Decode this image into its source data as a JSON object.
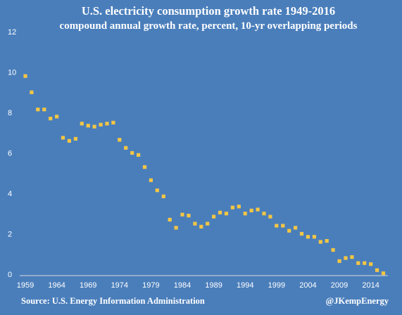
{
  "colors": {
    "background": "#4a7ebb",
    "marker": "#f2c644",
    "axis_line": "#d9d9d9",
    "text": "#ffffff"
  },
  "footer": {
    "source": "Source: U.S. Energy Information Administration",
    "credit": "@JKempEnergy"
  },
  "chart_data": {
    "type": "scatter",
    "title": "U.S. electricity consumption growth rate 1949-2016",
    "subtitle": "compound annual growth rate, percent, 10-yr overlapping periods",
    "xlabel": "",
    "ylabel": "",
    "xlim": [
      1959,
      2016
    ],
    "ylim": [
      0,
      12
    ],
    "x_ticks": [
      1959,
      1964,
      1969,
      1974,
      1979,
      1984,
      1989,
      1994,
      1999,
      2004,
      2009,
      2014
    ],
    "y_ticks": [
      0,
      2,
      4,
      6,
      8,
      10,
      12
    ],
    "grid": false,
    "marker": "square",
    "series": [
      {
        "x": [
          1959,
          1960,
          1961,
          1962,
          1963,
          1964,
          1965,
          1966,
          1967,
          1968,
          1969,
          1970,
          1971,
          1972,
          1973,
          1974,
          1975,
          1976,
          1977,
          1978,
          1979,
          1980,
          1981,
          1982,
          1983,
          1984,
          1985,
          1986,
          1987,
          1988,
          1989,
          1990,
          1991,
          1992,
          1993,
          1994,
          1995,
          1996,
          1997,
          1998,
          1999,
          2000,
          2001,
          2002,
          2003,
          2004,
          2005,
          2006,
          2007,
          2008,
          2009,
          2010,
          2011,
          2012,
          2013,
          2014,
          2015,
          2016
        ],
        "y": [
          9.8,
          9.0,
          8.15,
          8.15,
          7.7,
          7.8,
          6.75,
          6.6,
          6.7,
          7.45,
          7.35,
          7.3,
          7.4,
          7.45,
          7.5,
          6.65,
          6.25,
          6.0,
          5.9,
          5.3,
          4.65,
          4.15,
          3.85,
          2.7,
          2.3,
          2.95,
          2.9,
          2.5,
          2.35,
          2.5,
          2.85,
          3.05,
          3.0,
          3.3,
          3.35,
          3.0,
          3.15,
          3.2,
          3.0,
          2.85,
          2.4,
          2.4,
          2.15,
          2.3,
          2.0,
          1.85,
          1.85,
          1.6,
          1.65,
          1.2,
          0.65,
          0.8,
          0.85,
          0.55,
          0.55,
          0.5,
          0.2,
          0.05
        ]
      }
    ]
  }
}
